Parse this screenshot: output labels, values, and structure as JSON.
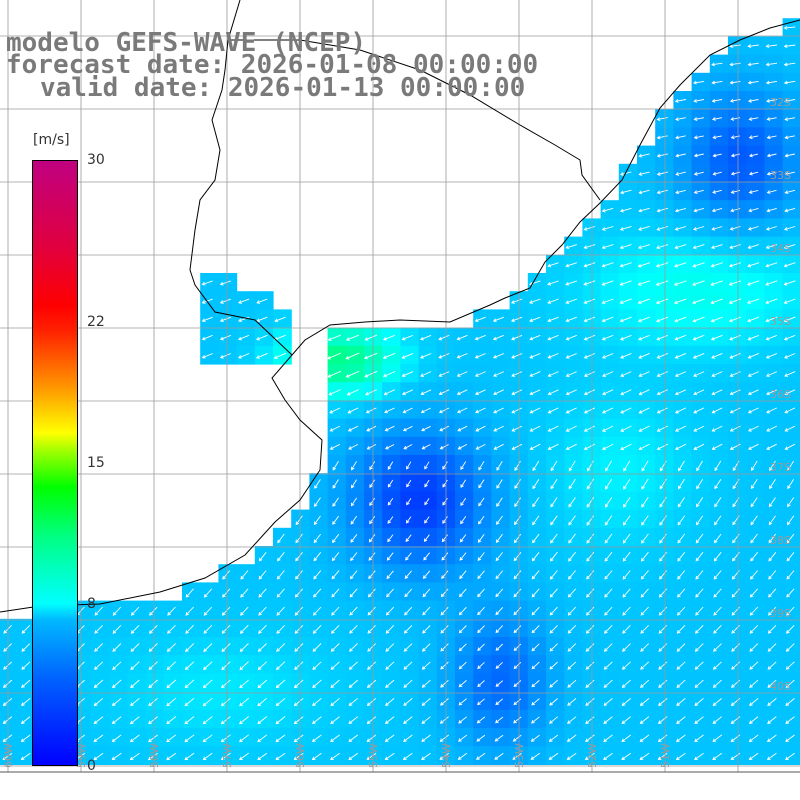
{
  "title": {
    "line1": "modelo GEFS-WAVE (NCEP)",
    "line2": "forecast date: 2026-01-08 00:00:00",
    "line3": "valid date: 2026-01-13 00:00:00"
  },
  "colorbar": {
    "unit": "[m/s]",
    "ticks": [
      "30",
      "22",
      "15",
      "8",
      "0"
    ],
    "tick_values": [
      30,
      22,
      15,
      8,
      0
    ],
    "range": [
      0,
      30
    ]
  },
  "map": {
    "lat_labels": [
      "32S",
      "33S",
      "34S",
      "35S",
      "36S",
      "37S",
      "38S",
      "39S",
      "40S"
    ],
    "lon_labels": [
      "60W",
      "59W",
      "58W",
      "57W",
      "56W",
      "55W",
      "54W",
      "53W",
      "52W",
      "51W"
    ],
    "colors": {
      "land": "#ffffff",
      "grid": "#9a9a9a",
      "coast": "#000000",
      "arrow": "#ffffff"
    }
  }
}
